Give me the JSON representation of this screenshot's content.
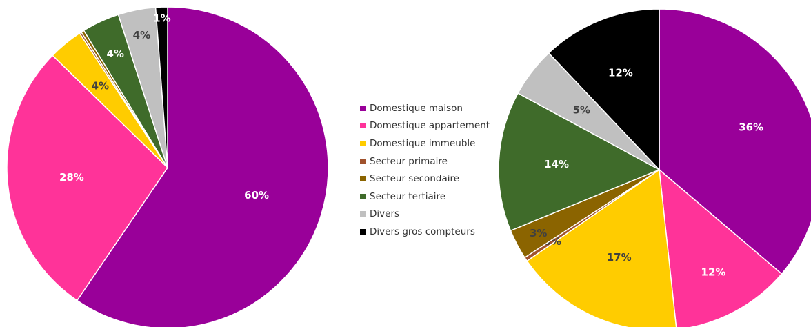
{
  "chart_data": [
    {
      "type": "pie",
      "title": "",
      "categories": [
        "Domestique maison",
        "Domestique appartement",
        "Domestique immeuble",
        "Secteur primaire",
        "Secteur secondaire",
        "Secteur tertiaire",
        "Divers",
        "Divers gros compteurs"
      ],
      "values": [
        60,
        28,
        3.5,
        0.2,
        0.3,
        3.8,
        3.8,
        1.2
      ],
      "data_labels": [
        "60%",
        "28%",
        "4%",
        "",
        "",
        "4%",
        "4%",
        "1%"
      ],
      "start_angle_deg": 0,
      "direction": "clockwise"
    },
    {
      "type": "pie",
      "title": "",
      "categories": [
        "Domestique maison",
        "Domestique appartement",
        "Domestique immeuble",
        "Secteur primaire",
        "Secteur secondaire",
        "Secteur tertiaire",
        "Divers",
        "Divers gros compteurs"
      ],
      "values": [
        36,
        12,
        17,
        0.4,
        3,
        14,
        5,
        12
      ],
      "data_labels": [
        "36%",
        "12%",
        "17%",
        "0%",
        "3%",
        "14%",
        "5%",
        "12%"
      ],
      "start_angle_deg": 0,
      "direction": "clockwise"
    }
  ],
  "legend": {
    "placement": "center",
    "items": [
      {
        "label": "Domestique maison",
        "color": "#990099"
      },
      {
        "label": "Domestique appartement",
        "color": "#FF3399"
      },
      {
        "label": "Domestique immeuble",
        "color": "#FFCC00"
      },
      {
        "label": "Secteur primaire",
        "color": "#A0522D"
      },
      {
        "label": "Secteur secondaire",
        "color": "#8B6400"
      },
      {
        "label": "Secteur tertiaire",
        "color": "#3F6B2A"
      },
      {
        "label": "Divers",
        "color": "#C0C0C0"
      },
      {
        "label": "Divers gros compteurs",
        "color": "#000000"
      }
    ]
  },
  "label_colors": [
    "#ffffff",
    "#ffffff",
    "#404040",
    "#404040",
    "#404040",
    "#ffffff",
    "#404040",
    "#ffffff"
  ]
}
